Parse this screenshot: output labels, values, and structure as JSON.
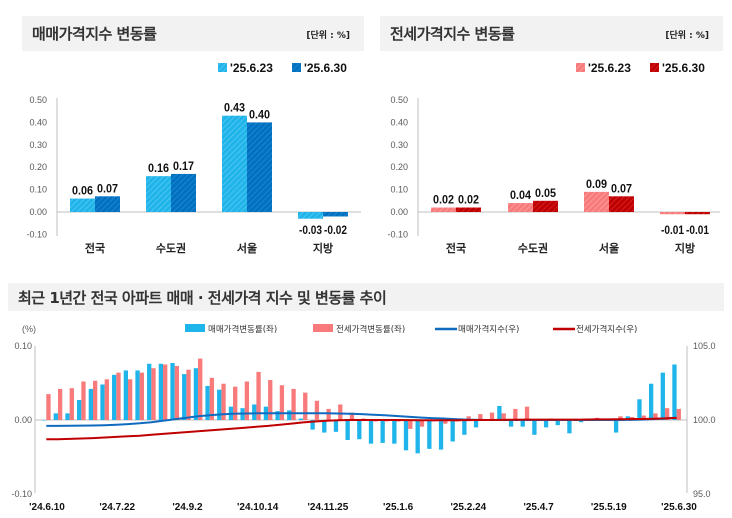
{
  "colors": {
    "sale_prev": "#1fb4ea",
    "sale_cur": "#0070c0",
    "jeonse_prev": "#f87a7a",
    "jeonse_cur": "#c00000",
    "sale_index": "#0f6bbf",
    "jeonse_index": "#c00000"
  },
  "panels": {
    "sale": {
      "title": "매매가격지수 변동률",
      "unit": "[단위 : %]"
    },
    "jeonse": {
      "title": "전세가격지수 변동률",
      "unit": "[단위 : %]"
    },
    "trend": {
      "title": "최근 1년간 전국 아파트 매매 · 전세가격 지수 및 변동률 추이"
    }
  },
  "chart_data": [
    {
      "type": "bar",
      "id": "sale",
      "categories": [
        "전국",
        "수도권",
        "서울",
        "지방"
      ],
      "series": [
        {
          "name": "'25.6.23",
          "values": [
            0.06,
            0.16,
            0.43,
            -0.03
          ]
        },
        {
          "name": "'25.6.30",
          "values": [
            0.07,
            0.17,
            0.4,
            -0.02
          ]
        }
      ],
      "yticks": [
        "0.50",
        "0.40",
        "0.30",
        "0.20",
        "0.10",
        "0.00",
        "-0.10"
      ],
      "ylim": [
        -0.1,
        0.5
      ],
      "legend": "top-right"
    },
    {
      "type": "bar",
      "id": "jeonse",
      "categories": [
        "전국",
        "수도권",
        "서울",
        "지방"
      ],
      "series": [
        {
          "name": "'25.6.23",
          "values": [
            0.02,
            0.04,
            0.09,
            -0.01
          ]
        },
        {
          "name": "'25.6.30",
          "values": [
            0.02,
            0.05,
            0.07,
            -0.01
          ]
        }
      ],
      "yticks": [
        "0.50",
        "0.40",
        "0.30",
        "0.20",
        "0.10",
        "0.00",
        "-0.10"
      ],
      "ylim": [
        -0.1,
        0.5
      ],
      "legend": "top-right"
    },
    {
      "type": "bar+line",
      "id": "trend",
      "ylabel_left": "(%)",
      "yticks_left": [
        "0.10",
        "0.00",
        "-0.10"
      ],
      "ylim_left": [
        -0.1,
        0.1
      ],
      "yticks_right": [
        "105.0",
        "100.0",
        "95.0"
      ],
      "ylim_right": [
        95,
        105
      ],
      "xticks": [
        "'24.6.10",
        "'24.7.22",
        "'24.9.2",
        "'24.10.14",
        "'24.11.25",
        "'25.1.6",
        "'25.2.24",
        "'25.4.7",
        "'25.5.19",
        "'25.6.30"
      ],
      "legend": "top",
      "series": [
        {
          "name": "매매가격변동률(좌)",
          "kind": "bar",
          "values": [
            0.0,
            0.009,
            0.009,
            0.027,
            0.042,
            0.048,
            0.061,
            0.067,
            0.067,
            0.076,
            0.076,
            0.077,
            0.062,
            0.07,
            0.046,
            0.041,
            0.018,
            0.016,
            0.021,
            0.018,
            0.012,
            0.013,
            0.002,
            -0.013,
            -0.017,
            -0.016,
            -0.027,
            -0.026,
            -0.032,
            -0.031,
            -0.032,
            -0.041,
            -0.045,
            -0.039,
            -0.04,
            -0.029,
            -0.02,
            -0.01,
            0.0,
            0.019,
            -0.009,
            -0.009,
            -0.02,
            -0.01,
            -0.007,
            -0.018,
            -0.003,
            0.0,
            0.0,
            -0.017,
            0.005,
            0.028,
            0.049,
            0.064,
            0.075
          ]
        },
        {
          "name": "전세가격변동률(좌)",
          "kind": "bar",
          "values": [
            0.035,
            0.042,
            0.043,
            0.052,
            0.053,
            0.055,
            0.064,
            0.055,
            0.064,
            0.07,
            0.075,
            0.073,
            0.068,
            0.083,
            0.057,
            0.049,
            0.045,
            0.052,
            0.065,
            0.054,
            0.047,
            0.042,
            0.037,
            0.026,
            0.015,
            0.021,
            0.01,
            0.002,
            -0.002,
            -0.002,
            -0.002,
            -0.012,
            -0.009,
            -0.002,
            -0.005,
            -0.002,
            0.005,
            0.008,
            0.01,
            0.009,
            0.015,
            0.018,
            0.0,
            0.002,
            0.0,
            0.0,
            0.002,
            0.003,
            0.001,
            0.005,
            0.004,
            0.006,
            0.009,
            0.016,
            0.015
          ]
        },
        {
          "name": "매매가격지수(우)",
          "kind": "line",
          "values": [
            99.6,
            99.6,
            99.61,
            99.62,
            99.63,
            99.65,
            99.68,
            99.72,
            99.78,
            99.85,
            99.95,
            100.05,
            100.15,
            100.25,
            100.32,
            100.38,
            100.42,
            100.44,
            100.45,
            100.46,
            100.46,
            100.46,
            100.46,
            100.46,
            100.45,
            100.44,
            100.42,
            100.4,
            100.36,
            100.32,
            100.27,
            100.22,
            100.17,
            100.13,
            100.1,
            100.06,
            100.03,
            100.01,
            100.0,
            100.0,
            100.0,
            100.0,
            100.0,
            100.0,
            100.0,
            100.0,
            100.0,
            100.0,
            100.0,
            100.0,
            100.01,
            100.03,
            100.06,
            100.1,
            100.15
          ]
        },
        {
          "name": "전세가격지수(우)",
          "kind": "line",
          "values": [
            98.7,
            98.7,
            98.72,
            98.75,
            98.78,
            98.82,
            98.86,
            98.9,
            98.94,
            99.0,
            99.06,
            99.12,
            99.18,
            99.24,
            99.3,
            99.36,
            99.42,
            99.48,
            99.54,
            99.6,
            99.68,
            99.76,
            99.84,
            99.9,
            99.95,
            99.98,
            100.0,
            100.0,
            100.0,
            100.0,
            100.0,
            99.99,
            99.98,
            99.98,
            99.98,
            99.98,
            99.99,
            100.0,
            100.0,
            100.01,
            100.02,
            100.03,
            100.03,
            100.03,
            100.03,
            100.03,
            100.03,
            100.04,
            100.04,
            100.05,
            100.06,
            100.07,
            100.09,
            100.11,
            100.14
          ]
        }
      ]
    }
  ]
}
